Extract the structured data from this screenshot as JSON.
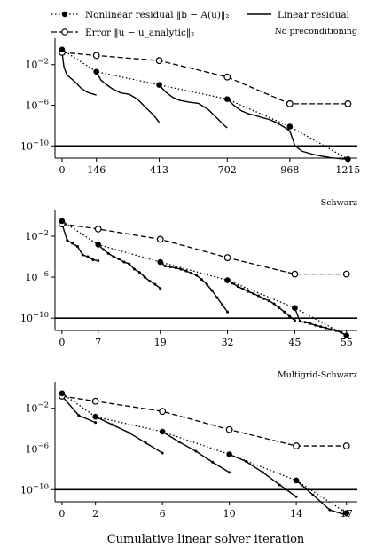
{
  "legend": {
    "nonlinear_residual": "Nonlinear residual ‖b − A(u)‖₂",
    "error": "Error ‖u − u_analytic‖₂",
    "linear_residual": "Linear residual"
  },
  "xlabel": "Cumulative linear solver iteration",
  "chart_data": [
    {
      "type": "line",
      "title": "No preconditioning",
      "y_scale": "log",
      "ylim_exp": [
        -11.2,
        0.6
      ],
      "y_tick_labels": [
        "10^-2",
        "10^-6",
        "10^-10"
      ],
      "y_tick_values": [
        0.01,
        1e-06,
        1e-10
      ],
      "xlim": [
        -30,
        1255
      ],
      "x_ticks": [
        0,
        146,
        413,
        702,
        968,
        1215
      ],
      "threshold_y": 1e-10,
      "series": [
        {
          "name": "Nonlinear residual",
          "x": [
            0,
            146,
            413,
            702,
            968,
            1215
          ],
          "y": [
            0.3,
            0.002,
            0.0001,
            4e-06,
            8e-09,
            5e-12
          ]
        },
        {
          "name": "Error",
          "x": [
            0,
            146,
            413,
            702,
            968,
            1215
          ],
          "y": [
            0.16,
            0.08,
            0.025,
            0.0006,
            1.4e-06,
            1.4e-06
          ]
        },
        {
          "name": "Linear residual segments",
          "segments": [
            {
              "x": [
                0,
                8,
                20,
                35,
                55,
                80,
                105,
                120,
                135,
                146
              ],
              "y": [
                0.16,
                0.006,
                0.001,
                0.0005,
                0.0002,
                5e-05,
                2e-05,
                1.5e-05,
                1.2e-05,
                1e-05
              ]
            },
            {
              "x": [
                146,
                165,
                190,
                215,
                250,
                285,
                320,
                355,
                390,
                413
              ],
              "y": [
                0.002,
                0.0003,
                0.0001,
                4e-05,
                1.6e-05,
                1.2e-05,
                4e-06,
                6e-07,
                1e-07,
                2e-08
              ]
            },
            {
              "x": [
                413,
                440,
                470,
                500,
                540,
                580,
                620,
                660,
                690,
                702
              ],
              "y": [
                0.0001,
                2e-05,
                6e-06,
                3e-06,
                2e-06,
                1.5e-06,
                4e-07,
                5e-08,
                1e-08,
                6e-09
              ]
            },
            {
              "x": [
                702,
                730,
                760,
                790,
                820,
                850,
                880,
                910,
                940,
                968,
                990,
                1020,
                1060,
                1100,
                1140,
                1180,
                1215
              ],
              "y": [
                4e-06,
                1e-06,
                3e-07,
                1.5e-07,
                1e-07,
                6e-08,
                4e-08,
                2e-08,
                8e-09,
                3e-09,
                1e-10,
                3e-11,
                1.6e-11,
                1e-11,
                7e-12,
                5.5e-12,
                5e-12
              ]
            }
          ]
        }
      ]
    },
    {
      "type": "line",
      "title": "Schwarz",
      "y_scale": "log",
      "ylim_exp": [
        -11.2,
        0.6
      ],
      "y_tick_labels": [
        "10^-2",
        "10^-6",
        "10^-10"
      ],
      "y_tick_values": [
        0.01,
        1e-06,
        1e-10
      ],
      "xlim": [
        -1.35,
        57.1
      ],
      "x_ticks": [
        0,
        7,
        19,
        32,
        45,
        55
      ],
      "threshold_y": 1e-10,
      "series": [
        {
          "name": "Nonlinear residual",
          "x": [
            0,
            7,
            19,
            32,
            45,
            55
          ],
          "y": [
            0.3,
            0.0015,
            3e-05,
            5e-07,
            1e-09,
            2e-12
          ]
        },
        {
          "name": "Error",
          "x": [
            0,
            7,
            19,
            32,
            45,
            55
          ],
          "y": [
            0.16,
            0.05,
            0.005,
            8e-05,
            2e-06,
            2e-06
          ]
        },
        {
          "name": "Linear residual segments",
          "segments": [
            {
              "x": [
                0,
                1,
                2,
                3,
                4,
                5,
                6,
                7
              ],
              "y": [
                0.16,
                0.004,
                0.002,
                0.001,
                0.00015,
                0.0001,
                5e-05,
                4e-05
              ]
            },
            {
              "x": [
                7,
                8,
                9,
                10,
                11,
                12,
                13,
                14,
                15,
                16,
                17,
                18,
                19
              ],
              "y": [
                0.0015,
                0.0005,
                0.0002,
                0.0001,
                6e-05,
                3e-05,
                2e-05,
                6e-06,
                3e-06,
                1e-06,
                4e-07,
                2e-07,
                8e-08
              ]
            },
            {
              "x": [
                19,
                20,
                21,
                22,
                23,
                24,
                25,
                26,
                27,
                28,
                29,
                30,
                31,
                32
              ],
              "y": [
                3e-05,
                1.2e-05,
                1e-05,
                8e-06,
                6e-06,
                4e-06,
                2.5e-06,
                1.5e-06,
                6e-07,
                2e-07,
                5e-08,
                1e-08,
                2e-09,
                4e-10
              ]
            },
            {
              "x": [
                32,
                33,
                34,
                35,
                36,
                37,
                38,
                39,
                40,
                41,
                42,
                43,
                44,
                45
              ],
              "y": [
                5e-07,
                2.5e-07,
                1.2e-07,
                7e-08,
                4e-08,
                2.5e-08,
                1.5e-08,
                8e-09,
                5e-09,
                2.5e-09,
                1e-09,
                4e-10,
                1.5e-10,
                6e-11
              ]
            },
            {
              "x": [
                45,
                46,
                47,
                48,
                49,
                50,
                51,
                52,
                53,
                54,
                55
              ],
              "y": [
                1e-09,
                5e-11,
                4e-11,
                3e-11,
                2e-11,
                1.5e-11,
                1.1e-11,
                8e-12,
                6e-12,
                4e-12,
                2e-12
              ]
            }
          ]
        }
      ]
    },
    {
      "type": "line",
      "title": "Multigrid-Schwarz",
      "y_scale": "log",
      "ylim_exp": [
        -11.2,
        0.6
      ],
      "y_tick_labels": [
        "10^-2",
        "10^-6",
        "10^-10"
      ],
      "y_tick_values": [
        0.01,
        1e-06,
        1e-10
      ],
      "xlim": [
        -0.42,
        17.65
      ],
      "x_ticks": [
        0,
        2,
        6,
        10,
        14,
        17
      ],
      "threshold_y": 1e-10,
      "series": [
        {
          "name": "Nonlinear residual",
          "x": [
            0,
            2,
            6,
            10,
            14,
            17
          ],
          "y": [
            0.3,
            0.0015,
            5e-05,
            3e-07,
            8e-10,
            5e-13
          ]
        },
        {
          "name": "Error",
          "x": [
            0,
            2,
            6,
            10,
            14,
            17
          ],
          "y": [
            0.16,
            0.05,
            0.005,
            8e-05,
            2e-06,
            2e-06
          ]
        },
        {
          "name": "Linear residual segments",
          "segments": [
            {
              "x": [
                0,
                1,
                2
              ],
              "y": [
                0.16,
                0.002,
                0.0004
              ]
            },
            {
              "x": [
                2,
                3,
                4,
                5,
                6
              ],
              "y": [
                0.0015,
                0.00025,
                4e-05,
                4e-06,
                4e-07
              ]
            },
            {
              "x": [
                6,
                7,
                8,
                9,
                10
              ],
              "y": [
                5e-05,
                5e-06,
                6e-07,
                5e-08,
                5e-09
              ]
            },
            {
              "x": [
                10,
                11,
                12,
                13,
                14
              ],
              "y": [
                3e-07,
                6e-08,
                5e-09,
                3e-10,
                2e-11
              ]
            },
            {
              "x": [
                14,
                15,
                16,
                17
              ],
              "y": [
                8e-10,
                3e-11,
                1e-12,
                3e-13
              ]
            }
          ]
        }
      ]
    }
  ]
}
